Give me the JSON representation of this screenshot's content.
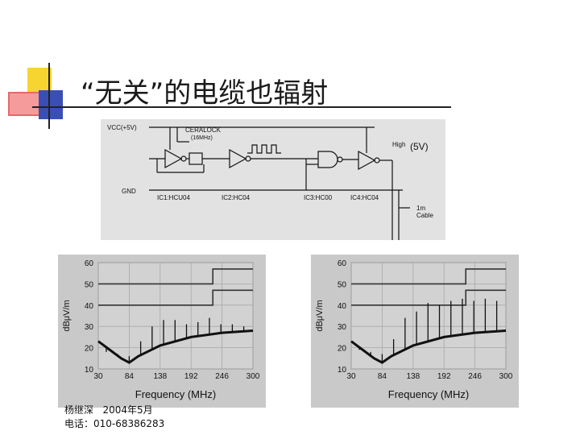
{
  "slide": {
    "title": "“无关”的电缆也辐射",
    "footer_line1": "杨继深   2004年5月",
    "footer_line2": "电话：010-68386283"
  },
  "circuit": {
    "labels": {
      "vcc": "VCC(+5V)",
      "gnd": "GND",
      "ceralock": "CERALOCK",
      "freq": "(16MHz)",
      "high": "High",
      "high_v": "(5V)",
      "ic1": "IC1:HCU04",
      "ic2": "IC2:HC04",
      "ic3": "IC3:HC00",
      "ic4": "IC4:HC04",
      "cable_len": "1m",
      "cable": "Cable"
    }
  },
  "colors": {
    "plot_bg": "#d2d2d2",
    "grid": "#a8a8a8",
    "trace": "#111111",
    "limit": "#333333"
  },
  "chart_data": [
    {
      "type": "line",
      "title": "",
      "xlabel": "Frequency (MHz)",
      "ylabel": "dBμV/m",
      "xlim": [
        30,
        300
      ],
      "ylim": [
        10,
        60
      ],
      "xticks": [
        "30",
        "84",
        "138",
        "192",
        "246",
        "300"
      ],
      "yticks": [
        "10",
        "20",
        "30",
        "40",
        "50",
        "60"
      ],
      "noise_floor": {
        "x": [
          30,
          50,
          70,
          84,
          100,
          138,
          192,
          246,
          300
        ],
        "y": [
          23,
          19,
          15,
          13,
          16,
          21,
          25,
          27,
          28
        ]
      },
      "peaks": {
        "x": [
          44,
          64,
          84,
          104,
          124,
          144,
          164,
          184,
          204,
          224,
          244,
          264,
          284
        ],
        "y": [
          18,
          17,
          16,
          23,
          30,
          33,
          33,
          31,
          32,
          34,
          31,
          31,
          30
        ]
      },
      "limit_lines": [
        {
          "x": [
            30,
            230,
            230,
            300
          ],
          "y": [
            50,
            50,
            57,
            57
          ]
        },
        {
          "x": [
            30,
            230,
            230,
            300
          ],
          "y": [
            40,
            40,
            47,
            47
          ]
        }
      ]
    },
    {
      "type": "line",
      "title": "",
      "xlabel": "Frequency (MHz)",
      "ylabel": "dBμV/m",
      "xlim": [
        30,
        300
      ],
      "ylim": [
        10,
        60
      ],
      "xticks": [
        "30",
        "84",
        "138",
        "192",
        "246",
        "300"
      ],
      "yticks": [
        "10",
        "20",
        "30",
        "40",
        "50",
        "60"
      ],
      "noise_floor": {
        "x": [
          30,
          50,
          70,
          84,
          100,
          138,
          192,
          246,
          300
        ],
        "y": [
          23,
          19,
          15,
          13,
          16,
          21,
          25,
          27,
          28
        ]
      },
      "peaks": {
        "x": [
          44,
          64,
          84,
          104,
          124,
          144,
          164,
          184,
          204,
          224,
          244,
          264,
          284
        ],
        "y": [
          19,
          18,
          17,
          24,
          34,
          37,
          41,
          40,
          42,
          43,
          42,
          43,
          42
        ]
      },
      "limit_lines": [
        {
          "x": [
            30,
            230,
            230,
            300
          ],
          "y": [
            50,
            50,
            57,
            57
          ]
        },
        {
          "x": [
            30,
            230,
            230,
            300
          ],
          "y": [
            40,
            40,
            47,
            47
          ]
        }
      ]
    }
  ]
}
